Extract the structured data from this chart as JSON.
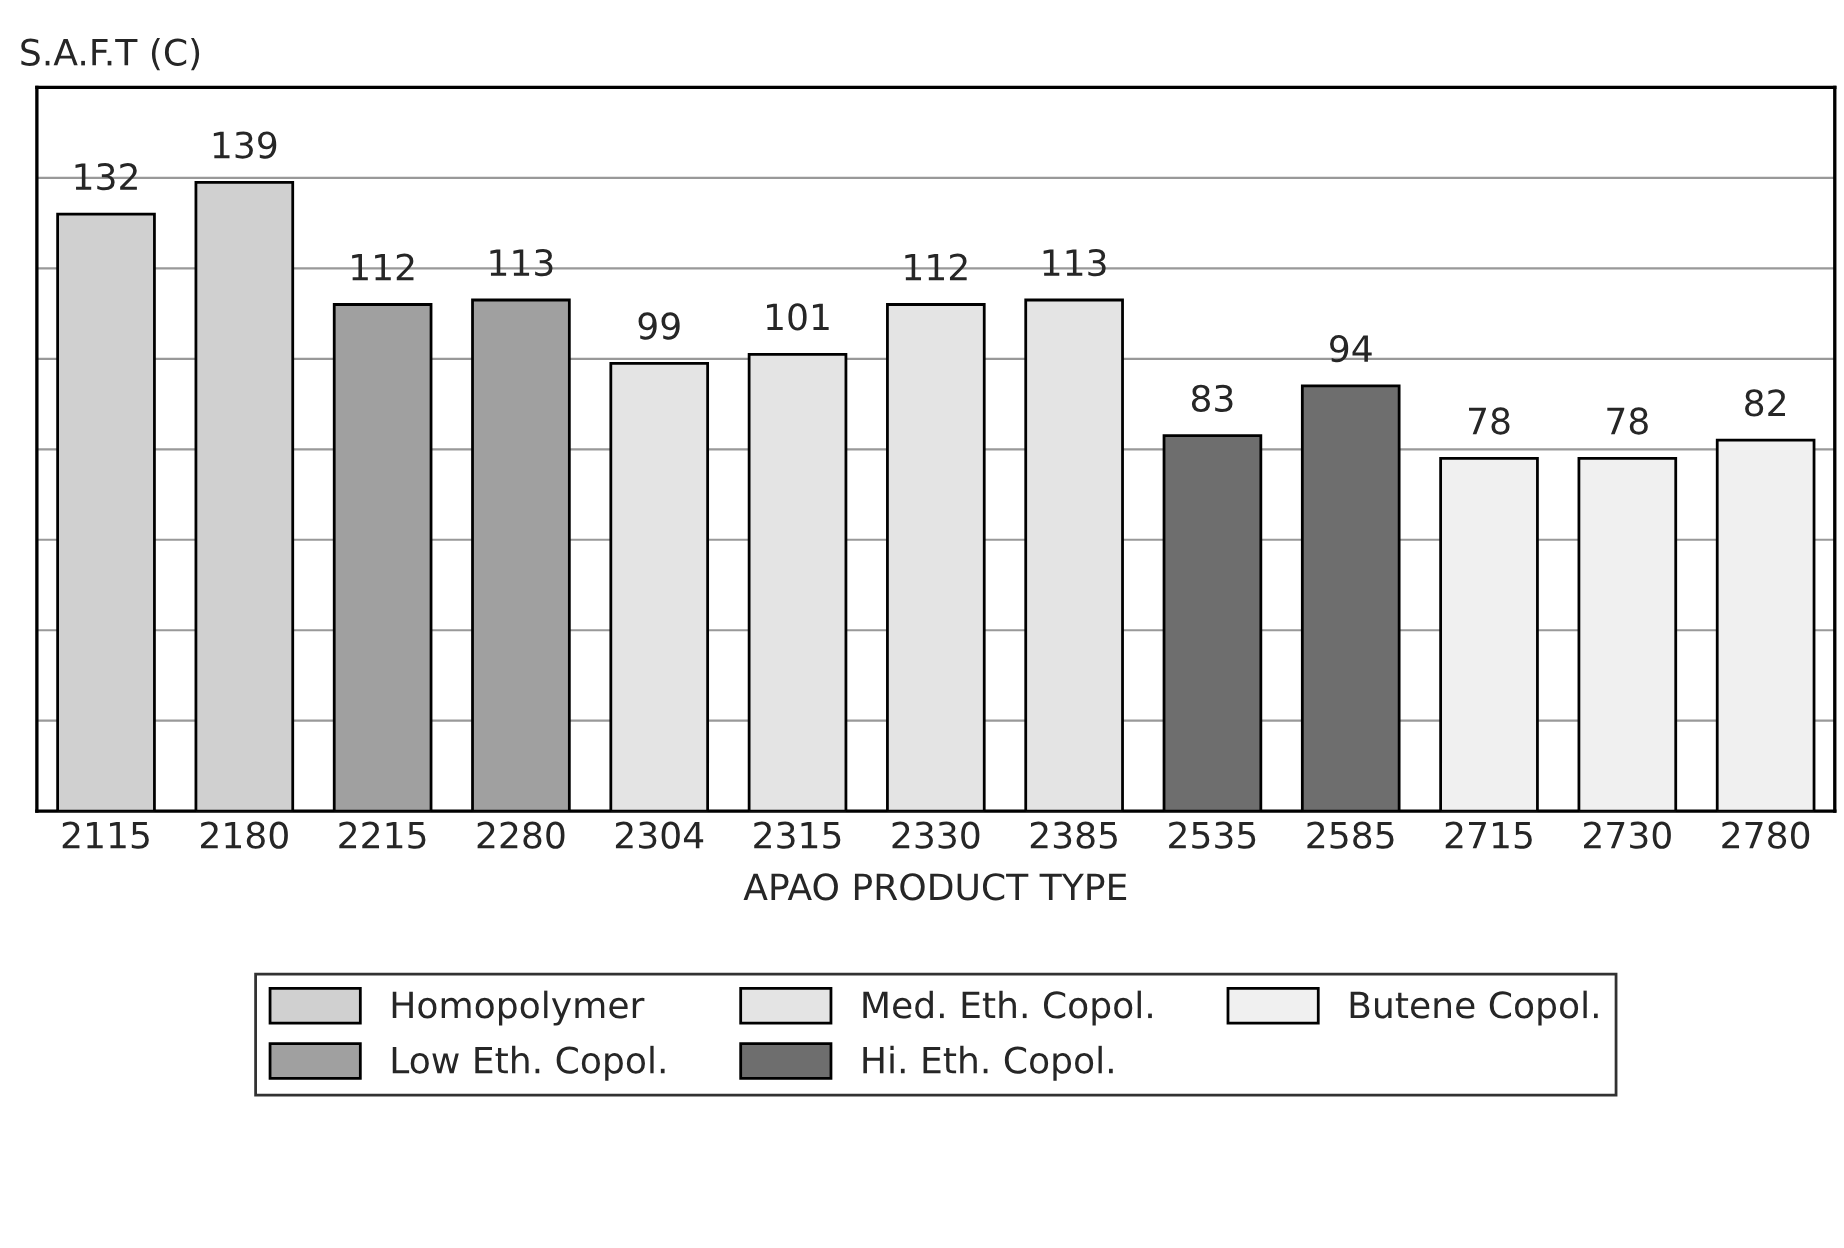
{
  "chart_data": {
    "type": "bar",
    "ylabel": "S.A.F.T (C)",
    "xlabel": "APAO PRODUCT TYPE",
    "categories": [
      "2115",
      "2180",
      "2215",
      "2280",
      "2304",
      "2315",
      "2330",
      "2385",
      "2535",
      "2585",
      "2715",
      "2730",
      "2780"
    ],
    "series": [
      {
        "name": "Homopolymer",
        "color": "#d0d0d0",
        "values": [
          132,
          139,
          null,
          null,
          null,
          null,
          null,
          null,
          null,
          null,
          null,
          null,
          null
        ]
      },
      {
        "name": "Low Eth. Copol.",
        "color": "#a0a0a0",
        "values": [
          null,
          null,
          112,
          113,
          null,
          null,
          null,
          null,
          null,
          null,
          null,
          null,
          null
        ]
      },
      {
        "name": "Med. Eth. Copol.",
        "color": "#e4e4e4",
        "values": [
          null,
          null,
          null,
          null,
          99,
          101,
          112,
          113,
          null,
          null,
          null,
          null,
          null
        ]
      },
      {
        "name": "Hi. Eth. Copol.",
        "color": "#6e6e6e",
        "values": [
          null,
          null,
          null,
          null,
          null,
          null,
          null,
          null,
          83,
          94,
          null,
          null,
          null
        ]
      },
      {
        "name": "Butene Copol.",
        "color": "#f0f0f0",
        "values": [
          null,
          null,
          null,
          null,
          null,
          null,
          null,
          null,
          null,
          null,
          78,
          78,
          82
        ]
      }
    ],
    "ylim": [
      0,
      160
    ],
    "yticks": [
      {
        "value": 0,
        "label": null
      },
      {
        "value": 20,
        "label": null
      },
      {
        "value": 40,
        "label": null
      },
      {
        "value": 60,
        "label": null
      },
      {
        "value": 80,
        "label": null
      },
      {
        "value": 100,
        "label": null
      },
      {
        "value": 120,
        "label": null
      },
      {
        "value": 140,
        "label": null
      },
      {
        "value": 160,
        "label": null
      }
    ],
    "tick_labels": "x",
    "grid": "y",
    "data_labels": true,
    "legend": "bottom"
  }
}
